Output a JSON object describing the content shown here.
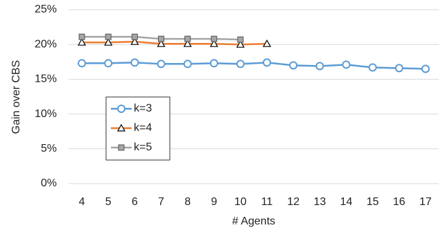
{
  "chart_data": {
    "type": "line",
    "x_label": "# Agents",
    "y_label": "Gain over CBS",
    "categories": [
      "4",
      "5",
      "6",
      "7",
      "8",
      "9",
      "10",
      "11",
      "12",
      "13",
      "14",
      "15",
      "16",
      "17"
    ],
    "series": [
      {
        "name": "k=3",
        "color": "#5b9bd5",
        "marker": "circle",
        "values": [
          17.3,
          17.3,
          17.4,
          17.2,
          17.2,
          17.3,
          17.2,
          17.4,
          17.0,
          16.9,
          17.1,
          16.7,
          16.6,
          16.5
        ]
      },
      {
        "name": "k=4",
        "color": "#ed7d31",
        "marker": "triangle",
        "values": [
          20.3,
          20.3,
          20.4,
          20.1,
          20.1,
          20.1,
          20.0,
          20.1,
          null,
          null,
          null,
          null,
          null,
          null
        ]
      },
      {
        "name": "k=5",
        "color": "#a5a5a5",
        "marker": "square",
        "values": [
          21.1,
          21.1,
          21.1,
          20.8,
          20.8,
          20.8,
          20.7,
          null,
          null,
          null,
          null,
          null,
          null,
          null
        ]
      }
    ],
    "ylim": [
      0,
      25
    ],
    "yticks": [
      {
        "value": 0,
        "label": "0%"
      },
      {
        "value": 5,
        "label": "5%"
      },
      {
        "value": 10,
        "label": "10%"
      },
      {
        "value": 15,
        "label": "15%"
      },
      {
        "value": 20,
        "label": "20%"
      },
      {
        "value": 25,
        "label": "25%"
      }
    ],
    "grid": true
  }
}
